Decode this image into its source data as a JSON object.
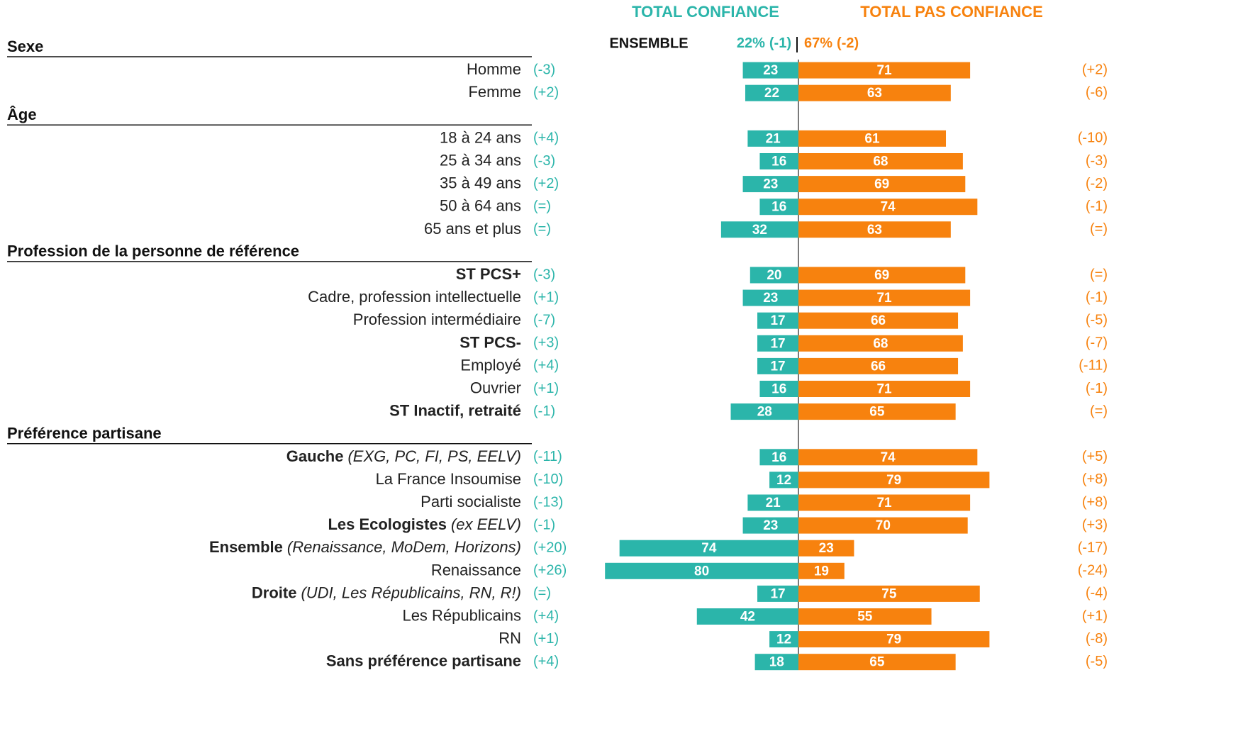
{
  "chart_data": {
    "type": "diverging_bar",
    "series": [
      {
        "name": "TOTAL CONFIANCE",
        "color": "#2bb5aa"
      },
      {
        "name": "TOTAL PAS CONFIANCE",
        "color": "#f7820e"
      }
    ],
    "overall": {
      "label": "ENSEMBLE",
      "values": [
        22,
        67
      ],
      "value_labels": [
        "22%",
        "67%"
      ],
      "changes": [
        "(-1)",
        "(-2)"
      ]
    },
    "sections": [
      {
        "title": "Sexe",
        "rows": [
          {
            "label": "Homme",
            "values": [
              23,
              71
            ],
            "changes": [
              "(-3)",
              "(+2)"
            ]
          },
          {
            "label": "Femme",
            "values": [
              22,
              63
            ],
            "changes": [
              "(+2)",
              "(-6)"
            ]
          }
        ]
      },
      {
        "title": "Âge",
        "rows": [
          {
            "label": "18 à 24 ans",
            "values": [
              21,
              61
            ],
            "changes": [
              "(+4)",
              "(-10)"
            ]
          },
          {
            "label": "25 à 34 ans",
            "values": [
              16,
              68
            ],
            "changes": [
              "(-3)",
              "(-3)"
            ]
          },
          {
            "label": "35 à 49 ans",
            "values": [
              23,
              69
            ],
            "changes": [
              "(+2)",
              "(-2)"
            ]
          },
          {
            "label": "50 à 64 ans",
            "values": [
              16,
              74
            ],
            "changes": [
              "(=)",
              "(-1)"
            ]
          },
          {
            "label": "65 ans et plus",
            "values": [
              32,
              63
            ],
            "changes": [
              "(=)",
              "(=)"
            ]
          }
        ]
      },
      {
        "title": "Profession de la personne de référence",
        "rows": [
          {
            "label": "ST PCS+",
            "bold": true,
            "values": [
              20,
              69
            ],
            "changes": [
              "(-3)",
              "(=)"
            ]
          },
          {
            "label": "Cadre, profession intellectuelle",
            "values": [
              23,
              71
            ],
            "changes": [
              "(+1)",
              "(-1)"
            ]
          },
          {
            "label": "Profession intermédiaire",
            "values": [
              17,
              66
            ],
            "changes": [
              "(-7)",
              "(-5)"
            ]
          },
          {
            "label": "ST PCS-",
            "bold": true,
            "values": [
              17,
              68
            ],
            "changes": [
              "(+3)",
              "(-7)"
            ]
          },
          {
            "label": "Employé",
            "values": [
              17,
              66
            ],
            "changes": [
              "(+4)",
              "(-11)"
            ]
          },
          {
            "label": "Ouvrier",
            "values": [
              16,
              71
            ],
            "changes": [
              "(+1)",
              "(-1)"
            ]
          },
          {
            "label": "ST Inactif, retraité",
            "bold": true,
            "values": [
              28,
              65
            ],
            "changes": [
              "(-1)",
              "(=)"
            ]
          }
        ]
      },
      {
        "title": "Préférence partisane",
        "rows": [
          {
            "label": "Gauche",
            "note": "(EXG, PC, FI, PS, EELV)",
            "bold": true,
            "values": [
              16,
              74
            ],
            "changes": [
              "(-11)",
              "(+5)"
            ]
          },
          {
            "label": "La France Insoumise",
            "values": [
              12,
              79
            ],
            "changes": [
              "(-10)",
              "(+8)"
            ]
          },
          {
            "label": "Parti socialiste",
            "values": [
              21,
              71
            ],
            "changes": [
              "(-13)",
              "(+8)"
            ]
          },
          {
            "label": "Les Ecologistes",
            "note": "(ex EELV)",
            "bold": true,
            "values": [
              23,
              70
            ],
            "changes": [
              "(-1)",
              "(+3)"
            ]
          },
          {
            "label": "Ensemble",
            "note": "(Renaissance, MoDem, Horizons)",
            "bold": true,
            "values": [
              74,
              23
            ],
            "changes": [
              "(+20)",
              "(-17)"
            ]
          },
          {
            "label": "Renaissance",
            "values": [
              80,
              19
            ],
            "changes": [
              "(+26)",
              "(-24)"
            ]
          },
          {
            "label": "Droite",
            "note": "(UDI, Les Républicains, RN, R!)",
            "bold": true,
            "values": [
              17,
              75
            ],
            "changes": [
              "(=)",
              "(-4)"
            ]
          },
          {
            "label": "Les Républicains",
            "values": [
              42,
              55
            ],
            "changes": [
              "(+4)",
              "(+1)"
            ]
          },
          {
            "label": "RN",
            "values": [
              12,
              79
            ],
            "changes": [
              "(+1)",
              "(-8)"
            ]
          },
          {
            "label": "Sans préférence partisane",
            "bold": true,
            "values": [
              18,
              65
            ],
            "changes": [
              "(+4)",
              "(-5)"
            ]
          }
        ]
      }
    ]
  }
}
